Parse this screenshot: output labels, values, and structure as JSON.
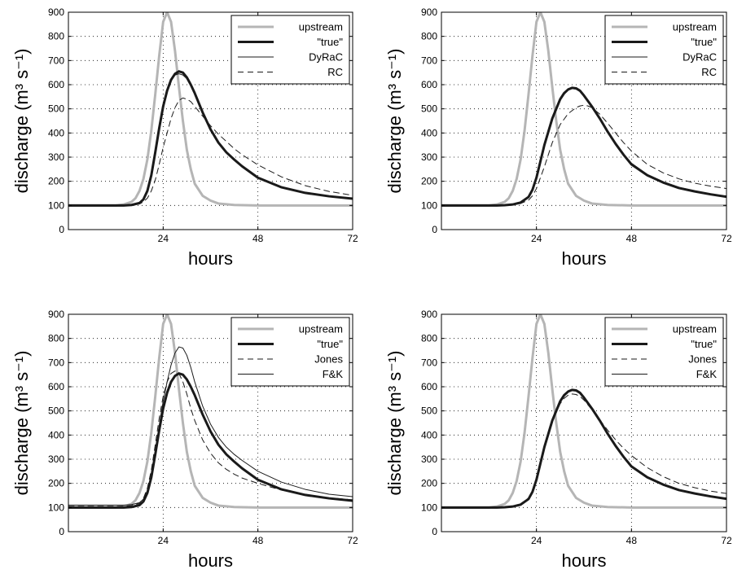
{
  "chart_data": [
    {
      "type": "line",
      "xlabel": "hours",
      "ylabel": "discharge (m³ s⁻¹)",
      "xlim": [
        0,
        72
      ],
      "ylim": [
        0,
        900
      ],
      "xticks": [
        "24",
        "48",
        "72"
      ],
      "yticks": [
        "0",
        "100",
        "200",
        "300",
        "400",
        "500",
        "600",
        "700",
        "800",
        "900"
      ],
      "grid": true,
      "legend_position": "top-right",
      "series": [
        {
          "name": "upstream",
          "color": "#b5b5b5",
          "style": "solid-thick",
          "x": [
            0,
            12,
            14,
            16,
            17,
            18,
            19,
            20,
            21,
            22,
            23,
            24,
            25,
            26,
            27,
            28,
            29,
            30,
            31,
            32,
            34,
            36,
            38,
            42,
            48,
            72
          ],
          "y": [
            100,
            100,
            104,
            115,
            130,
            160,
            210,
            290,
            410,
            560,
            720,
            860,
            900,
            860,
            740,
            590,
            450,
            330,
            250,
            190,
            140,
            120,
            108,
            102,
            100,
            100
          ]
        },
        {
          "name": "\"true\"",
          "color": "#1a1a1a",
          "style": "solid-thick",
          "x": [
            0,
            14,
            16,
            18,
            19,
            20,
            21,
            22,
            23,
            24,
            25,
            26,
            27,
            28,
            29,
            30,
            31,
            32,
            34,
            36,
            38,
            40,
            42,
            44,
            48,
            54,
            60,
            66,
            72
          ],
          "y": [
            100,
            100,
            102,
            110,
            125,
            160,
            225,
            320,
            420,
            510,
            575,
            620,
            645,
            655,
            650,
            630,
            600,
            565,
            485,
            415,
            360,
            320,
            290,
            262,
            215,
            175,
            152,
            138,
            128
          ]
        },
        {
          "name": "DyRaC",
          "color": "#1a1a1a",
          "style": "solid-thin",
          "x": [
            0,
            14,
            16,
            18,
            19,
            20,
            21,
            22,
            23,
            24,
            25,
            26,
            27,
            28,
            29,
            30,
            31,
            32,
            34,
            36,
            38,
            40,
            42,
            44,
            48,
            54,
            60,
            66,
            72
          ],
          "y": [
            100,
            100,
            102,
            110,
            125,
            160,
            225,
            320,
            420,
            510,
            575,
            620,
            640,
            645,
            640,
            625,
            600,
            565,
            485,
            415,
            360,
            320,
            290,
            262,
            215,
            175,
            152,
            138,
            128
          ]
        },
        {
          "name": "RC",
          "color": "#1a1a1a",
          "style": "dashed",
          "x": [
            0,
            14,
            16,
            18,
            19,
            20,
            21,
            22,
            23,
            24,
            25,
            26,
            27,
            28,
            29,
            30,
            31,
            32,
            34,
            36,
            38,
            40,
            42,
            44,
            48,
            54,
            60,
            66,
            72
          ],
          "y": [
            100,
            100,
            101,
            106,
            115,
            130,
            160,
            205,
            270,
            340,
            400,
            460,
            505,
            535,
            545,
            540,
            530,
            510,
            470,
            430,
            395,
            365,
            335,
            310,
            268,
            218,
            182,
            158,
            142
          ]
        }
      ]
    },
    {
      "type": "line",
      "xlabel": "hours",
      "ylabel": "discharge (m³ s⁻¹)",
      "xlim": [
        0,
        72
      ],
      "ylim": [
        0,
        900
      ],
      "xticks": [
        "24",
        "48",
        "72"
      ],
      "yticks": [
        "0",
        "100",
        "200",
        "300",
        "400",
        "500",
        "600",
        "700",
        "800",
        "900"
      ],
      "grid": true,
      "legend_position": "top-right",
      "series": [
        {
          "name": "upstream",
          "color": "#b5b5b5",
          "style": "solid-thick",
          "x": [
            0,
            12,
            14,
            16,
            17,
            18,
            19,
            20,
            21,
            22,
            23,
            24,
            25,
            26,
            27,
            28,
            29,
            30,
            31,
            32,
            34,
            36,
            38,
            42,
            48,
            72
          ],
          "y": [
            100,
            100,
            104,
            115,
            130,
            160,
            210,
            290,
            410,
            560,
            720,
            860,
            900,
            860,
            740,
            590,
            450,
            330,
            250,
            190,
            140,
            120,
            108,
            102,
            100,
            100
          ]
        },
        {
          "name": "\"true\"",
          "color": "#1a1a1a",
          "style": "solid-thick",
          "x": [
            0,
            14,
            16,
            18,
            20,
            22,
            23,
            24,
            26,
            28,
            30,
            31,
            32,
            33,
            34,
            35,
            36,
            38,
            40,
            42,
            44,
            46,
            48,
            52,
            56,
            60,
            64,
            68,
            72
          ],
          "y": [
            100,
            100,
            101,
            104,
            112,
            135,
            165,
            215,
            350,
            460,
            540,
            565,
            580,
            587,
            585,
            575,
            555,
            510,
            460,
            405,
            355,
            310,
            270,
            225,
            195,
            172,
            158,
            146,
            136
          ]
        },
        {
          "name": "DyRaC",
          "color": "#1a1a1a",
          "style": "solid-thin",
          "x": [
            0,
            14,
            16,
            18,
            20,
            22,
            23,
            24,
            26,
            28,
            30,
            31,
            32,
            33,
            34,
            35,
            36,
            38,
            40,
            42,
            44,
            46,
            48,
            52,
            56,
            60,
            64,
            68,
            72
          ],
          "y": [
            100,
            100,
            101,
            104,
            112,
            135,
            165,
            215,
            345,
            455,
            535,
            560,
            577,
            584,
            582,
            572,
            553,
            508,
            458,
            405,
            355,
            312,
            275,
            228,
            198,
            175,
            160,
            147,
            138
          ]
        },
        {
          "name": "RC",
          "color": "#1a1a1a",
          "style": "dashed",
          "x": [
            0,
            14,
            16,
            18,
            20,
            22,
            23,
            24,
            26,
            28,
            30,
            32,
            34,
            35,
            36,
            37,
            38,
            40,
            42,
            44,
            46,
            48,
            52,
            56,
            60,
            64,
            68,
            72
          ],
          "y": [
            100,
            100,
            101,
            102,
            108,
            122,
            140,
            170,
            260,
            360,
            435,
            480,
            505,
            512,
            515,
            512,
            505,
            478,
            440,
            400,
            360,
            325,
            270,
            235,
            210,
            192,
            180,
            170
          ]
        }
      ]
    },
    {
      "type": "line",
      "xlabel": "hours",
      "ylabel": "discharge (m³ s⁻¹)",
      "xlim": [
        0,
        72
      ],
      "ylim": [
        0,
        900
      ],
      "xticks": [
        "24",
        "48",
        "72"
      ],
      "yticks": [
        "0",
        "100",
        "200",
        "300",
        "400",
        "500",
        "600",
        "700",
        "800",
        "900"
      ],
      "grid": true,
      "legend_position": "top-right",
      "series": [
        {
          "name": "upstream",
          "color": "#b5b5b5",
          "style": "solid-thick",
          "x": [
            0,
            12,
            14,
            16,
            17,
            18,
            19,
            20,
            21,
            22,
            23,
            24,
            25,
            26,
            27,
            28,
            29,
            30,
            31,
            32,
            34,
            36,
            38,
            42,
            48,
            72
          ],
          "y": [
            100,
            100,
            104,
            115,
            130,
            160,
            210,
            290,
            410,
            560,
            720,
            860,
            900,
            860,
            740,
            590,
            450,
            330,
            250,
            190,
            140,
            120,
            108,
            102,
            100,
            100
          ]
        },
        {
          "name": "\"true\"",
          "color": "#1a1a1a",
          "style": "solid-thick",
          "x": [
            0,
            14,
            16,
            18,
            19,
            20,
            21,
            22,
            23,
            24,
            25,
            26,
            27,
            28,
            29,
            30,
            31,
            32,
            34,
            36,
            38,
            40,
            42,
            44,
            48,
            54,
            60,
            66,
            72
          ],
          "y": [
            100,
            100,
            102,
            110,
            125,
            160,
            225,
            320,
            420,
            510,
            575,
            620,
            645,
            655,
            650,
            630,
            600,
            565,
            485,
            415,
            360,
            320,
            290,
            262,
            215,
            175,
            152,
            138,
            128
          ]
        },
        {
          "name": "Jones",
          "color": "#1a1a1a",
          "style": "dashed",
          "x": [
            0,
            14,
            16,
            18,
            19,
            20,
            21,
            22,
            23,
            24,
            25,
            26,
            27,
            28,
            29,
            30,
            31,
            32,
            34,
            36,
            38,
            40,
            42,
            44,
            48,
            54,
            60,
            66,
            72
          ],
          "y": [
            105,
            105,
            108,
            118,
            138,
            180,
            255,
            360,
            470,
            560,
            620,
            655,
            665,
            655,
            620,
            570,
            510,
            460,
            380,
            325,
            285,
            258,
            238,
            222,
            200,
            172,
            152,
            140,
            132
          ]
        },
        {
          "name": "F&K",
          "color": "#1a1a1a",
          "style": "solid-thin",
          "x": [
            0,
            14,
            16,
            18,
            19,
            20,
            21,
            22,
            23,
            24,
            25,
            26,
            27,
            28,
            29,
            30,
            31,
            32,
            34,
            36,
            38,
            40,
            42,
            44,
            48,
            54,
            60,
            66,
            72
          ],
          "y": [
            110,
            110,
            112,
            120,
            135,
            170,
            235,
            330,
            440,
            540,
            620,
            690,
            740,
            765,
            760,
            730,
            680,
            620,
            520,
            445,
            390,
            350,
            320,
            295,
            250,
            205,
            175,
            155,
            145
          ]
        }
      ]
    },
    {
      "type": "line",
      "xlabel": "hours",
      "ylabel": "discharge (m³ s⁻¹)",
      "xlim": [
        0,
        72
      ],
      "ylim": [
        0,
        900
      ],
      "xticks": [
        "24",
        "48",
        "72"
      ],
      "yticks": [
        "0",
        "100",
        "200",
        "300",
        "400",
        "500",
        "600",
        "700",
        "800",
        "900"
      ],
      "grid": true,
      "legend_position": "top-right",
      "series": [
        {
          "name": "upstream",
          "color": "#b5b5b5",
          "style": "solid-thick",
          "x": [
            0,
            12,
            14,
            16,
            17,
            18,
            19,
            20,
            21,
            22,
            23,
            24,
            25,
            26,
            27,
            28,
            29,
            30,
            31,
            32,
            34,
            36,
            38,
            42,
            48,
            72
          ],
          "y": [
            100,
            100,
            104,
            115,
            130,
            160,
            210,
            290,
            410,
            560,
            720,
            860,
            900,
            860,
            740,
            590,
            450,
            330,
            250,
            190,
            140,
            120,
            108,
            102,
            100,
            100
          ]
        },
        {
          "name": "\"true\"",
          "color": "#1a1a1a",
          "style": "solid-thick",
          "x": [
            0,
            14,
            16,
            18,
            20,
            22,
            23,
            24,
            26,
            28,
            30,
            31,
            32,
            33,
            34,
            35,
            36,
            38,
            40,
            42,
            44,
            46,
            48,
            52,
            56,
            60,
            64,
            68,
            72
          ],
          "y": [
            100,
            100,
            101,
            104,
            112,
            135,
            165,
            215,
            350,
            460,
            540,
            565,
            580,
            587,
            585,
            575,
            555,
            510,
            460,
            405,
            355,
            310,
            270,
            225,
            195,
            172,
            158,
            146,
            136
          ]
        },
        {
          "name": "Jones",
          "color": "#1a1a1a",
          "style": "dashed",
          "x": [
            0,
            14,
            16,
            18,
            20,
            22,
            23,
            24,
            26,
            28,
            30,
            31,
            32,
            33,
            34,
            35,
            36,
            38,
            40,
            42,
            44,
            46,
            48,
            52,
            56,
            60,
            64,
            68,
            72
          ],
          "y": [
            100,
            100,
            101,
            104,
            113,
            140,
            172,
            222,
            355,
            458,
            530,
            552,
            565,
            570,
            568,
            560,
            545,
            505,
            462,
            420,
            380,
            345,
            315,
            265,
            228,
            200,
            182,
            168,
            158
          ]
        },
        {
          "name": "F&K",
          "color": "#1a1a1a",
          "style": "solid-thin",
          "x": [
            0,
            14,
            16,
            18,
            20,
            22,
            23,
            24,
            26,
            28,
            30,
            31,
            32,
            33,
            34,
            35,
            36,
            38,
            40,
            42,
            44,
            46,
            48,
            52,
            56,
            60,
            64,
            68,
            72
          ],
          "y": [
            100,
            100,
            101,
            104,
            112,
            136,
            167,
            218,
            352,
            462,
            542,
            566,
            580,
            586,
            584,
            574,
            554,
            510,
            460,
            406,
            356,
            312,
            272,
            226,
            196,
            173,
            158,
            146,
            136
          ]
        }
      ]
    }
  ]
}
